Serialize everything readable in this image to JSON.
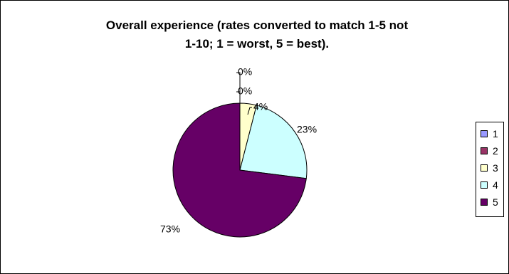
{
  "chart_data": {
    "type": "pie",
    "title_lines": [
      "Overall experience (rates converted to match 1-5 not",
      "1-10; 1 = worst, 5 = best)."
    ],
    "categories": [
      "1",
      "2",
      "3",
      "4",
      "5"
    ],
    "values": [
      0,
      0,
      4,
      23,
      73
    ],
    "data_labels": [
      "0%",
      "0%",
      "4%",
      "23%",
      "73%"
    ],
    "colors": [
      "#9999ff",
      "#993366",
      "#ffffcc",
      "#ccffff",
      "#660066"
    ],
    "legend_position": "right"
  }
}
